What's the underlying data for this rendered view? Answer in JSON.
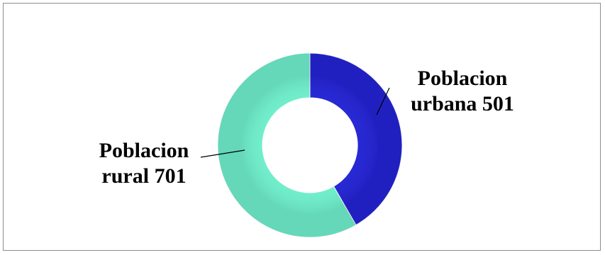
{
  "chart_data": {
    "type": "pie",
    "variant": "doughnut",
    "title": "",
    "categories": [
      "Poblacion urbana",
      "Poblacion rural"
    ],
    "values": [
      501,
      701
    ],
    "colors": [
      "#2323d6",
      "#6ff0cc"
    ],
    "data_labels": [
      [
        "Poblacion",
        "urbana 501"
      ],
      [
        "Poblacion",
        "rural 701"
      ]
    ],
    "legend": "none"
  }
}
